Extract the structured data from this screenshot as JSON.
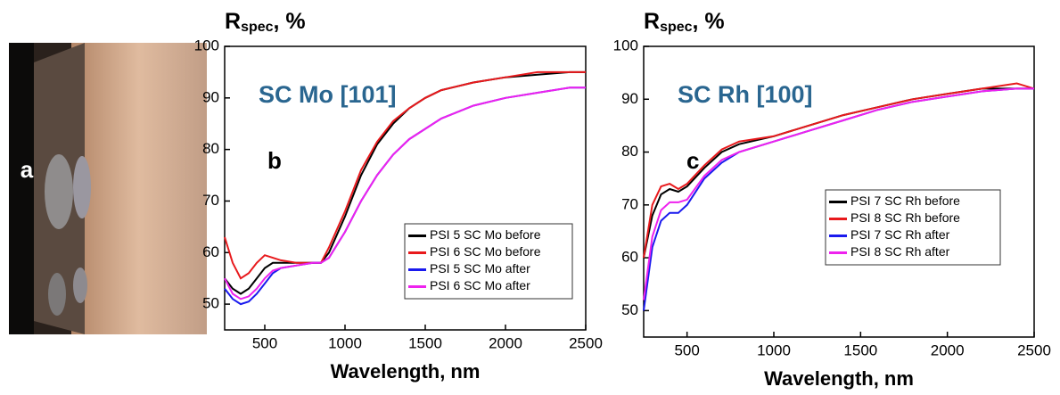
{
  "photo_panel": {
    "label": "a"
  },
  "chart_data": [
    {
      "type": "line",
      "panel_label": "b",
      "annotation": "SC Mo [101]",
      "annotation_color": "#2a6690",
      "ylabel_parts": [
        "R",
        "spec",
        ", %"
      ],
      "xlabel": "Wavelength, nm",
      "xlim": [
        250,
        2500
      ],
      "ylim": [
        45,
        100
      ],
      "xticks": [
        500,
        1000,
        1500,
        2000,
        2500
      ],
      "yticks": [
        50,
        60,
        70,
        80,
        90,
        100
      ],
      "legend": "lower right",
      "x": [
        250,
        300,
        350,
        400,
        450,
        500,
        550,
        600,
        700,
        800,
        850,
        900,
        1000,
        1100,
        1200,
        1300,
        1400,
        1500,
        1600,
        1800,
        2000,
        2200,
        2400,
        2500
      ],
      "series": [
        {
          "name": "PSI 5 SC Mo before",
          "color": "#000000",
          "values": [
            55,
            53,
            52,
            53,
            55,
            57,
            58,
            58,
            58,
            58,
            58,
            60,
            67,
            75,
            81,
            85,
            88,
            90,
            91.5,
            93,
            94,
            94.5,
            95,
            95
          ]
        },
        {
          "name": "PSI 6 SC Mo before",
          "color": "#e8191c",
          "values": [
            63,
            58,
            55,
            56,
            58,
            59.5,
            59,
            58.5,
            58,
            58,
            58,
            61,
            68,
            76,
            81.5,
            85.5,
            88,
            90,
            91.5,
            93,
            94,
            95,
            95,
            95
          ]
        },
        {
          "name": "PSI 5 SC Mo after",
          "color": "#1a1aee",
          "values": [
            53,
            51,
            50,
            50.5,
            52,
            54,
            56,
            57,
            57.5,
            58,
            58,
            59,
            64,
            70,
            75,
            79,
            82,
            84,
            86,
            88.5,
            90,
            91,
            92,
            92
          ]
        },
        {
          "name": "PSI 6 SC Mo after",
          "color": "#ee22ee",
          "values": [
            55,
            52,
            51,
            51.5,
            53,
            55,
            56.5,
            57,
            57.5,
            58,
            58,
            59,
            64,
            70,
            75,
            79,
            82,
            84,
            86,
            88.5,
            90,
            91,
            92,
            92
          ]
        }
      ]
    },
    {
      "type": "line",
      "panel_label": "c",
      "annotation": "SC Rh [100]",
      "annotation_color": "#2a6690",
      "ylabel_parts": [
        "R",
        "spec",
        ", %"
      ],
      "xlabel": "Wavelength, nm",
      "xlim": [
        250,
        2500
      ],
      "ylim": [
        45,
        100
      ],
      "xticks": [
        500,
        1000,
        1500,
        2000,
        2500
      ],
      "yticks": [
        50,
        60,
        70,
        80,
        90,
        100
      ],
      "legend": "center right",
      "x": [
        250,
        300,
        350,
        400,
        450,
        500,
        600,
        700,
        800,
        1000,
        1200,
        1400,
        1600,
        1800,
        2000,
        2200,
        2400,
        2500
      ],
      "series": [
        {
          "name": "PSI 7 SC Rh before",
          "color": "#000000",
          "values": [
            60,
            68,
            72,
            73,
            72.5,
            73.5,
            77,
            80,
            81.5,
            83,
            85,
            87,
            88.5,
            90,
            91,
            92,
            92,
            92
          ]
        },
        {
          "name": "PSI 8 SC Rh before",
          "color": "#e8191c",
          "values": [
            60,
            70,
            73.5,
            74,
            73,
            74,
            77.5,
            80.5,
            82,
            83,
            85,
            87,
            88.5,
            90,
            91,
            92,
            93,
            92
          ]
        },
        {
          "name": "PSI 7 SC Rh after",
          "color": "#1a1aee",
          "values": [
            50,
            62,
            67,
            68.5,
            68.5,
            70,
            75,
            78,
            80,
            82,
            84,
            86,
            88,
            89.5,
            90.5,
            91.5,
            92,
            92
          ]
        },
        {
          "name": "PSI 8 SC Rh after",
          "color": "#ee22ee",
          "values": [
            52,
            64,
            69,
            70.5,
            70.5,
            71,
            75.5,
            78.5,
            80,
            82,
            84,
            86,
            88,
            89.5,
            90.5,
            91.5,
            92,
            92
          ]
        }
      ]
    }
  ]
}
